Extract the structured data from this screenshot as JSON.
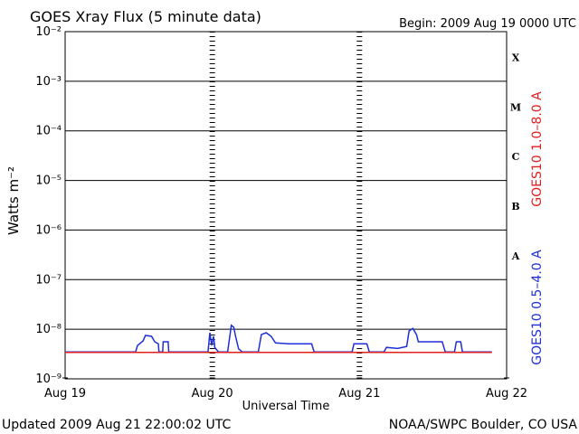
{
  "chart_data": {
    "type": "line",
    "title": "GOES Xray Flux (5 minute data)",
    "subtitle": "Begin:  2009 Aug 19 0000 UTC",
    "y_label": "Watts m⁻²",
    "x_label": "Universal Time",
    "footer_left": "Updated 2009 Aug 21 22:00:02 UTC",
    "footer_right": "NOAA/SWPC Boulder, CO USA",
    "log_y": true,
    "grid": true,
    "xlim": [
      0,
      72
    ],
    "xticks": [
      {
        "value": 0,
        "label": "Aug 19"
      },
      {
        "value": 24,
        "label": "Aug 20"
      },
      {
        "value": 48,
        "label": "Aug 21"
      },
      {
        "value": 72,
        "label": "Aug 22"
      }
    ],
    "ylim": [
      1e-09,
      0.01
    ],
    "yticks": [
      {
        "value": 1e-09,
        "label": "10⁻⁹"
      },
      {
        "value": 1e-08,
        "label": "10⁻⁸"
      },
      {
        "value": 1e-07,
        "label": "10⁻⁷"
      },
      {
        "value": 1e-06,
        "label": "10⁻⁶"
      },
      {
        "value": 1e-05,
        "label": "10⁻⁵"
      },
      {
        "value": 0.0001,
        "label": "10⁻⁴"
      },
      {
        "value": 0.001,
        "label": "10⁻³"
      },
      {
        "value": 0.01,
        "label": "10⁻²"
      }
    ],
    "class_labels": [
      "A",
      "B",
      "C",
      "M",
      "X"
    ],
    "series": [
      {
        "name": "GOES10 0.5–4.0 A",
        "color": "#1f2fd8",
        "x": [
          0,
          11.5,
          11.8,
          12.7,
          13.1,
          14.1,
          14.6,
          15.2,
          15.3,
          15.9,
          16.0,
          16.8,
          16.9,
          20.6,
          23.3,
          23.6,
          23.9,
          24.2,
          24.4,
          25.0,
          26.5,
          27.1,
          27.5,
          27.8,
          28.3,
          28.9,
          31.5,
          32.0,
          32.8,
          33.6,
          34.3,
          36.5,
          40.2,
          40.6,
          46.8,
          47.1,
          49.2,
          49.6,
          52.0,
          52.4,
          54.2,
          55.7,
          56.1,
          56.7,
          57.3,
          57.6,
          61.5,
          62.0,
          63.5,
          63.8,
          64.5,
          64.8,
          69.6
        ],
        "values": [
          3.5e-09,
          3.5e-09,
          4.7e-09,
          5.8e-09,
          7.5e-09,
          7.2e-09,
          5.6e-09,
          5.1e-09,
          3.5e-09,
          3.5e-09,
          5.6e-09,
          5.6e-09,
          3.5e-09,
          3.5e-09,
          3.5e-09,
          8.5e-09,
          4.7e-09,
          7.2e-09,
          4.3e-09,
          3.5e-09,
          3.5e-09,
          1.2e-08,
          1.1e-08,
          7.2e-09,
          4e-09,
          3.5e-09,
          3.5e-09,
          7.8e-09,
          8.5e-09,
          7.2e-09,
          5.3e-09,
          5.1e-09,
          5.1e-09,
          3.5e-09,
          3.5e-09,
          5.1e-09,
          5.1e-09,
          3.5e-09,
          3.5e-09,
          4.3e-09,
          4.1e-09,
          4.5e-09,
          9.2e-09,
          1.04e-08,
          7.8e-09,
          5.6e-09,
          5.6e-09,
          3.5e-09,
          3.5e-09,
          5.6e-09,
          5.6e-09,
          3.5e-09,
          3.5e-09
        ]
      },
      {
        "name": "GOES10 1.0–8.0 A",
        "color": "#e02020",
        "x": [
          0,
          69.6
        ],
        "values": [
          3.4e-09,
          3.4e-09
        ]
      }
    ]
  }
}
